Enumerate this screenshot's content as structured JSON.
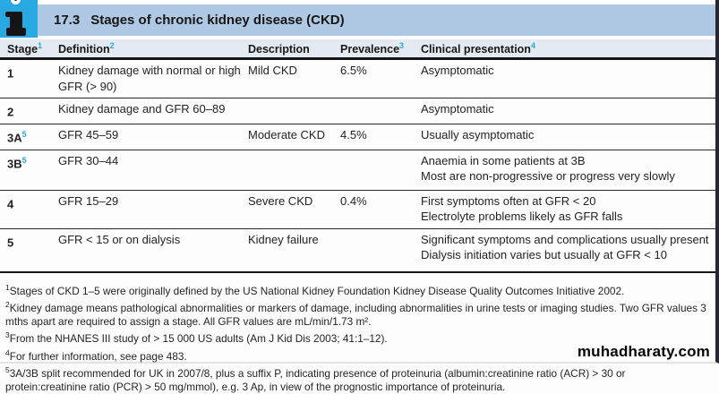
{
  "page": {
    "watermark": "muhadharaty.com"
  },
  "header": {
    "icon": "info-icon",
    "number": "17.3",
    "title": "Stages of chronic kidney disease (CKD)"
  },
  "colors": {
    "accent_cyan": "#29a9e1",
    "title_bar_blue": "#afc8e3",
    "header_row": "#e4eaf2"
  },
  "table": {
    "columns": [
      {
        "label": "Stage",
        "sup": "1"
      },
      {
        "label": "Definition",
        "sup": "2"
      },
      {
        "label": "Description",
        "sup": ""
      },
      {
        "label": "Prevalence",
        "sup": "3"
      },
      {
        "label": "Clinical presentation",
        "sup": "4"
      }
    ],
    "rows": [
      {
        "stage": "1",
        "stage_sup": "",
        "definition": "Kidney damage with normal or high GFR (> 90)",
        "description": "Mild CKD",
        "prevalence": "6.5%",
        "clinical": [
          "Asymptomatic"
        ]
      },
      {
        "stage": "2",
        "stage_sup": "",
        "definition": "Kidney damage and GFR 60–89",
        "description": "",
        "prevalence": "",
        "clinical": [
          "Asymptomatic"
        ]
      },
      {
        "stage": "3A",
        "stage_sup": "5",
        "definition": "GFR 45–59",
        "description": "Moderate CKD",
        "prevalence": "4.5%",
        "clinical": [
          "Usually asymptomatic"
        ]
      },
      {
        "stage": "3B",
        "stage_sup": "5",
        "definition": "GFR 30–44",
        "description": "",
        "prevalence": "",
        "clinical": [
          "Anaemia in some patients at 3B",
          "Most are non-progressive or progress very slowly"
        ]
      },
      {
        "stage": "4",
        "stage_sup": "",
        "definition": "GFR 15–29",
        "description": "Severe CKD",
        "prevalence": "0.4%",
        "clinical": [
          "First symptoms often at GFR < 20",
          "Electrolyte problems likely as GFR falls"
        ]
      },
      {
        "stage": "5",
        "stage_sup": "",
        "definition": "GFR < 15 or on dialysis",
        "description": "Kidney failure",
        "prevalence": "",
        "clinical": [
          "Significant symptoms and complications usually present",
          "Dialysis initiation varies but usually at GFR < 10"
        ]
      }
    ]
  },
  "footnotes": [
    {
      "sup": "1",
      "text": "Stages of CKD 1–5 were originally defined by the US National Kidney Foundation Kidney Disease Quality Outcomes Initiative 2002."
    },
    {
      "sup": "2",
      "text": "Kidney damage means pathological abnormalities or markers of damage, including abnormalities in urine tests or imaging studies. Two GFR values 3 mths apart are required to assign a stage. All GFR values are mL/min/1.73 m²."
    },
    {
      "sup": "3",
      "text": "From the NHANES III study of > 15 000 US adults (Am J Kid Dis 2003; 41:1–12)."
    },
    {
      "sup": "4",
      "text": "For further information, see page 483."
    },
    {
      "sup": "5",
      "text": "3A/3B split recommended for UK in 2007/8, plus a suffix P, indicating presence of proteinuria (albumin:creatinine ratio (ACR) > 30 or protein:creatinine ratio (PCR) > 50 mg/mmol), e.g. 3 Ap, in view of the prognostic importance of proteinuria."
    }
  ]
}
